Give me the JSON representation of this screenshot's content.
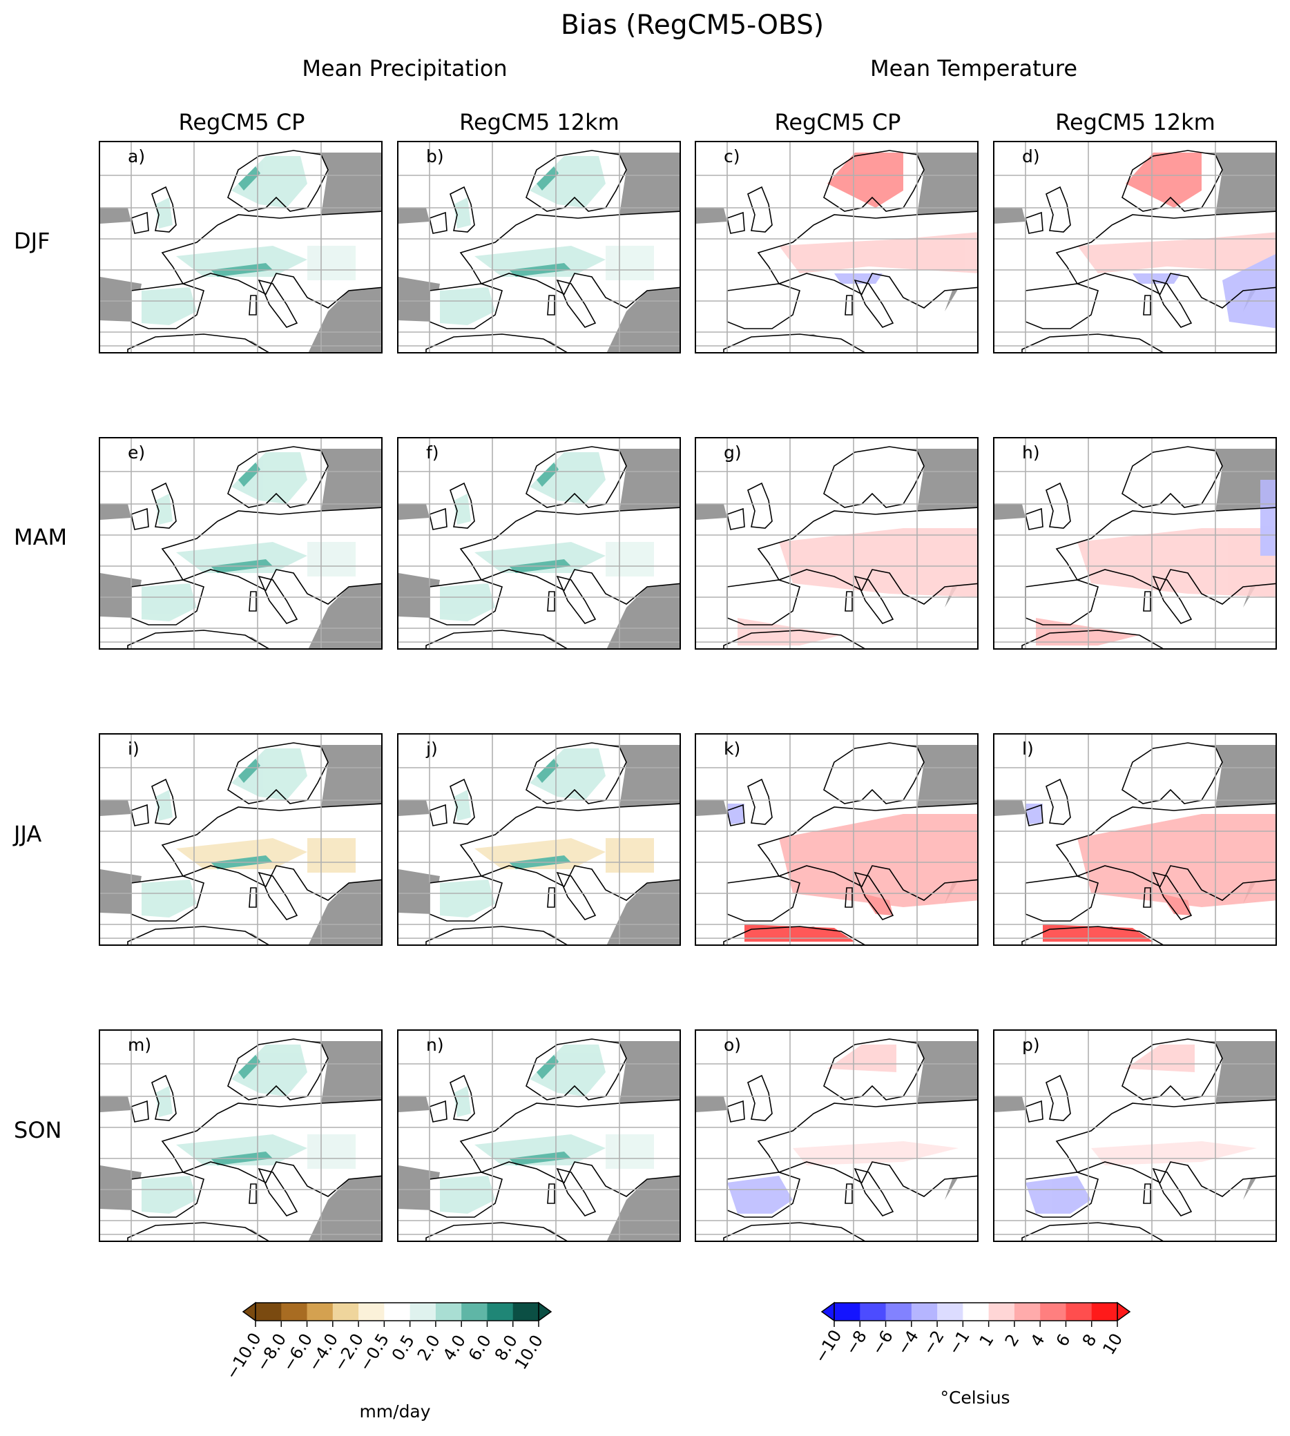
{
  "title": "Bias (RegCM5-OBS)",
  "groups": [
    "Mean Precipitation",
    "Mean Temperature"
  ],
  "columns": [
    "RegCM5 CP",
    "RegCM5 12km",
    "RegCM5 CP",
    "RegCM5 12km"
  ],
  "rows": [
    "DJF",
    "MAM",
    "JJA",
    "SON"
  ],
  "panel_labels": [
    "a)",
    "b)",
    "c)",
    "d)",
    "e)",
    "f)",
    "g)",
    "h)",
    "i)",
    "j)",
    "k)",
    "l)",
    "m)",
    "n)",
    "o)",
    "p)"
  ],
  "colorbars": {
    "precip": {
      "unit": "mm/day",
      "ticks": [
        "−10.0",
        "−8.0",
        "−6.0",
        "−4.0",
        "−2.0",
        "−0.5",
        "0.5",
        "2.0",
        "4.0",
        "6.0",
        "8.0",
        "10.0"
      ],
      "colors": [
        "#7a4a10",
        "#a86c22",
        "#d4a150",
        "#efd59c",
        "#fbf1d9",
        "#ffffff",
        "#dff2ee",
        "#a9ded3",
        "#5fb6a6",
        "#1f8676",
        "#0b4f44"
      ]
    },
    "temp": {
      "unit": "°Celsius",
      "ticks": [
        "−10",
        "−8",
        "−6",
        "−4",
        "−2",
        "−1",
        "1",
        "2",
        "4",
        "6",
        "8",
        "10"
      ],
      "colors": [
        "#1414ff",
        "#4c4cff",
        "#8282ff",
        "#b5b5ff",
        "#dcdcff",
        "#ffffff",
        "#ffd6d6",
        "#ffabab",
        "#ff7f7f",
        "#ff4e4e",
        "#ff1a1a"
      ]
    }
  },
  "map_colors": {
    "masked": "#999999",
    "wet": "#4fb3a0",
    "wet_light": "#cdeee6",
    "dry": "#f7e6bf",
    "warm": "#ff8a8a",
    "warm_light": "#ffd0d0",
    "cold": "#b8b8ff"
  }
}
